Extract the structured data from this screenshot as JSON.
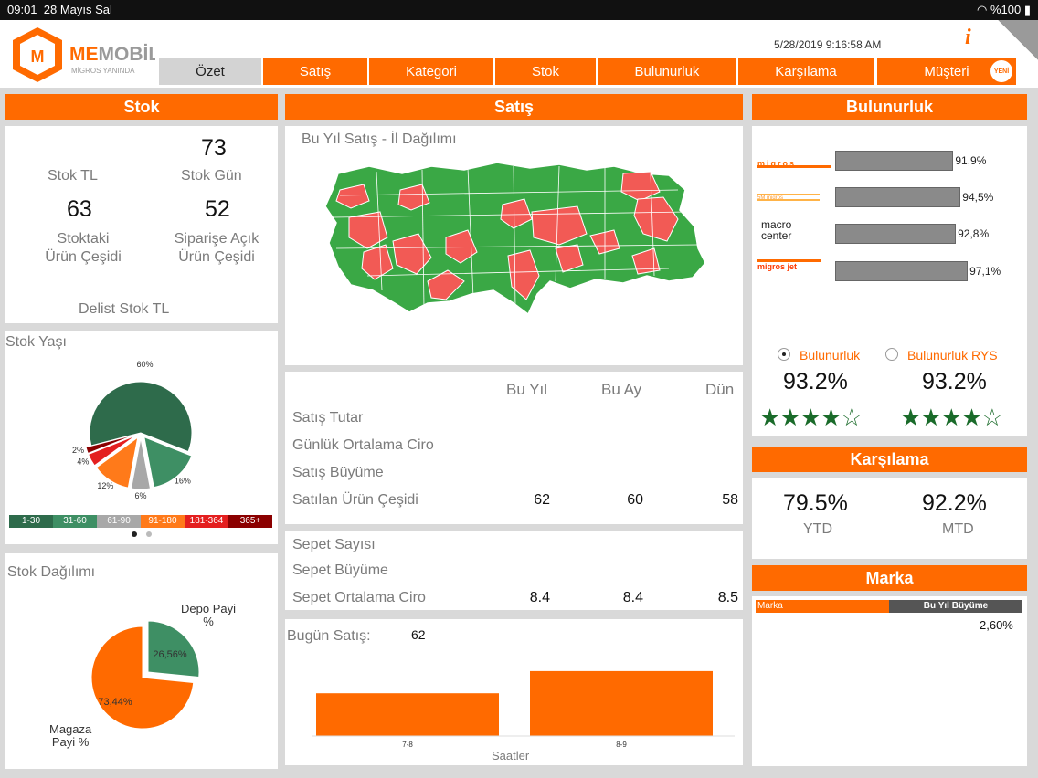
{
  "status": {
    "time": "09:01",
    "date": "28 Mayıs Sal",
    "battery": "%100"
  },
  "brand": {
    "name_a": "ME",
    "name_b": "MOBİL",
    "tagline": "MİGROS YANINDA"
  },
  "timestamp": "5/28/2019 9:16:58 AM",
  "info_label": "i",
  "tabs": [
    {
      "label": "Özet"
    },
    {
      "label": "Satış"
    },
    {
      "label": "Kategori"
    },
    {
      "label": "Stok"
    },
    {
      "label": "Bulunurluk"
    },
    {
      "label": "Karşılama"
    },
    {
      "label": "Müşteri"
    }
  ],
  "yeni_badge": "YENİ",
  "stok": {
    "title": "Stok",
    "stok_tl_label": "Stok TL",
    "stok_gun_value": "73",
    "stok_gun_label": "Stok Gün",
    "cesit_value": "63",
    "cesit_label": "Stoktaki\nÜrün Çeşidi",
    "acik_value": "52",
    "acik_label": "Siparişe Açık\nÜrün Çeşidi",
    "delist_label": "Delist Stok TL"
  },
  "stok_yasi": {
    "title": "Stok Yaşı",
    "slices": [
      {
        "label": "60%",
        "value": 60,
        "color": "#2e6b4b"
      },
      {
        "label": "16%",
        "value": 16,
        "color": "#3e8f64"
      },
      {
        "label": "6%",
        "value": 6,
        "color": "#a8a8a8"
      },
      {
        "label": "12%",
        "value": 12,
        "color": "#ff7a1a"
      },
      {
        "label": "4%",
        "value": 4,
        "color": "#e41f1f"
      },
      {
        "label": "2%",
        "value": 2,
        "color": "#8b0000"
      }
    ],
    "legend": [
      {
        "label": "1-30",
        "color": "#2e6b4b"
      },
      {
        "label": "31-60",
        "color": "#3e8f64"
      },
      {
        "label": "61-90",
        "color": "#a8a8a8"
      },
      {
        "label": "91-180",
        "color": "#ff7a1a"
      },
      {
        "label": "181-364",
        "color": "#e41f1f"
      },
      {
        "label": "365+",
        "color": "#8b0000"
      }
    ]
  },
  "stok_dagilimi": {
    "title": "Stok Dağılımı",
    "depo_label": "Depo Payi\n%",
    "depo_value": "26,56%",
    "depo_pct": 26.56,
    "magaza_label": "Magaza\nPayi %",
    "magaza_value": "73,44%",
    "magaza_pct": 73.44
  },
  "satis": {
    "title": "Satış",
    "map_title": "Bu Yıl Satış - İl Dağılımı",
    "col_labels": [
      "Bu Yıl",
      "Bu Ay",
      "Dün"
    ],
    "rows": [
      {
        "label": "Satış Tutar",
        "values": [
          "",
          "",
          ""
        ]
      },
      {
        "label": "Günlük Ortalama Ciro",
        "values": [
          "",
          "",
          ""
        ]
      },
      {
        "label": "Satış Büyüme",
        "values": [
          "",
          "",
          ""
        ]
      },
      {
        "label": "Satılan Ürün Çeşidi",
        "values": [
          "62",
          "60",
          "58"
        ]
      }
    ],
    "sepet_rows": [
      {
        "label": "Sepet Sayısı",
        "values": [
          "",
          "",
          ""
        ]
      },
      {
        "label": "Sepet Büyüme",
        "values": [
          "",
          "",
          ""
        ]
      },
      {
        "label": "Sepet Ortalama Ciro",
        "values": [
          "8.4",
          "8.4",
          "8.5"
        ]
      }
    ]
  },
  "bugun": {
    "title": "Bugün Satış:",
    "value": "62",
    "xlabel": "Saatler"
  },
  "chart_data": {
    "type": "bar",
    "categories": [
      "7-8",
      "8-9"
    ],
    "values": [
      52,
      79
    ],
    "xlabel": "Saatler",
    "ylim": [
      0,
      100
    ]
  },
  "bulunurluk": {
    "title": "Bulunurluk",
    "bars": [
      {
        "brand": "migros",
        "value": 91.9,
        "label": "91,9%"
      },
      {
        "brand": "5M migros",
        "value": 94.5,
        "label": "94,5%"
      },
      {
        "brand": "macro center",
        "value": 92.8,
        "label": "92,8%"
      },
      {
        "brand": "migros jet",
        "value": 97.1,
        "label": "97,1%"
      }
    ],
    "radio1": "Bulunurluk",
    "radio2": "Bulunurluk RYS",
    "score1": "93.2%",
    "score2": "93.2%",
    "stars1": 4.5,
    "stars2": 4.5
  },
  "karsilama": {
    "title": "Karşılama",
    "ytd_value": "79.5%",
    "ytd_label": "YTD",
    "mtd_value": "92.2%",
    "mtd_label": "MTD"
  },
  "marka": {
    "title": "Marka",
    "col1": "Marka",
    "col2": "Bu Yıl Büyüme",
    "value": "2,60%"
  },
  "colors": {
    "accent": "#ff6a00",
    "green": "#3aa845",
    "red": "#f25a55"
  }
}
